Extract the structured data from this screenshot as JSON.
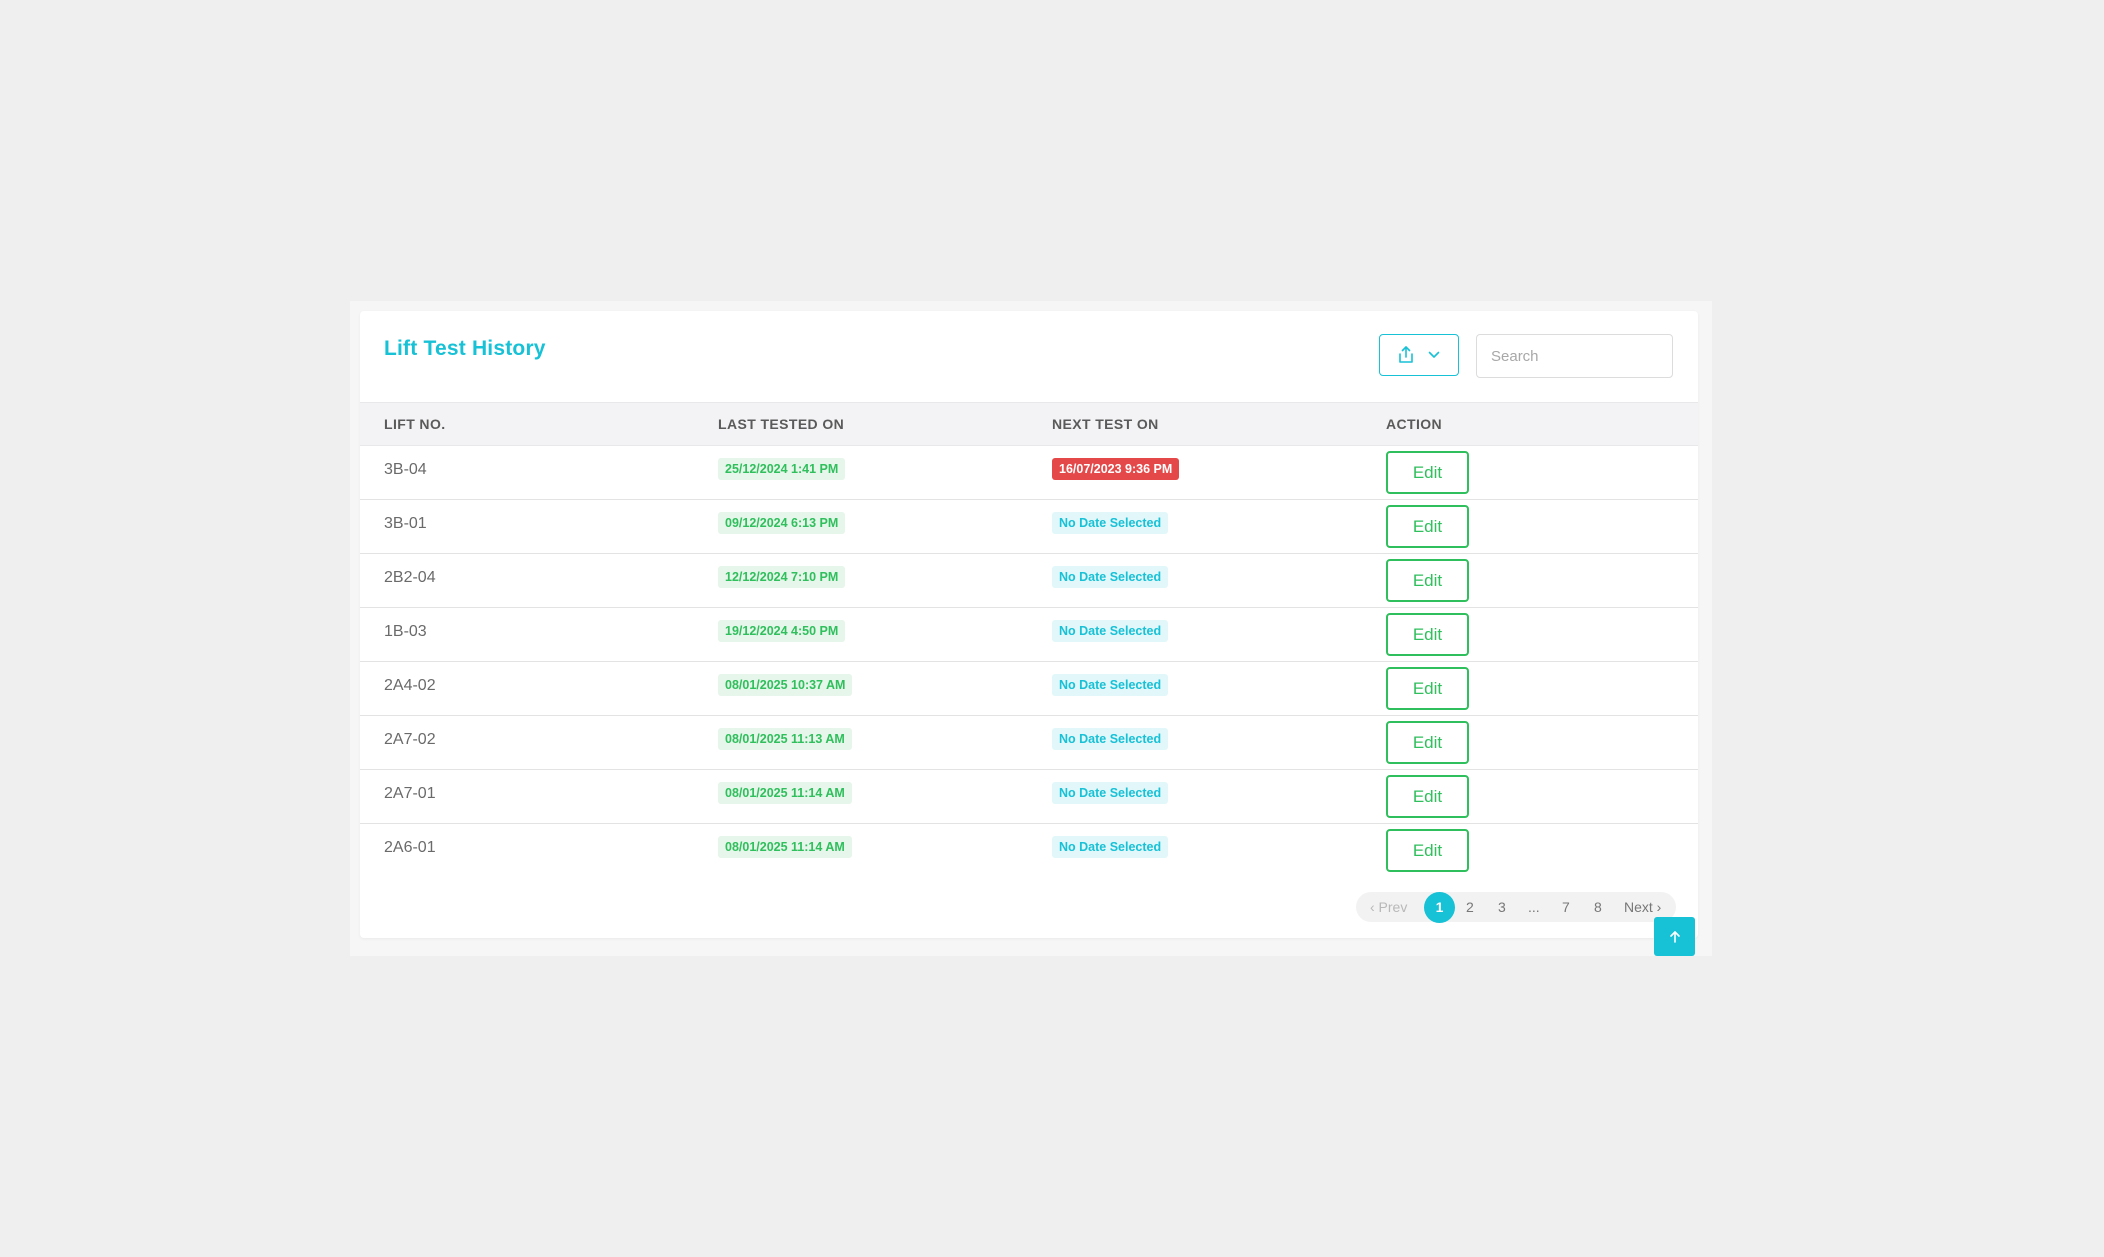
{
  "card": {
    "title": "Lift Test History"
  },
  "toolbar": {
    "export_icon": "share-export-icon",
    "chevron_icon": "chevron-down-icon",
    "search_placeholder": "Search",
    "accent_color": "#17c1d6"
  },
  "table": {
    "headers": [
      "LIFT NO.",
      "LAST TESTED ON",
      "NEXT TEST ON",
      "ACTION"
    ],
    "rows": [
      {
        "lift": "3B-04",
        "last": "25/12/2024 1:41 PM",
        "next": "16/07/2023 9:36 PM",
        "next_status": "overdue",
        "action": "Edit"
      },
      {
        "lift": "3B-01",
        "last": "09/12/2024 6:13 PM",
        "next": "No Date Selected",
        "next_status": "none",
        "action": "Edit"
      },
      {
        "lift": "2B2-04",
        "last": "12/12/2024 7:10 PM",
        "next": "No Date Selected",
        "next_status": "none",
        "action": "Edit"
      },
      {
        "lift": "1B-03",
        "last": "19/12/2024 4:50 PM",
        "next": "No Date Selected",
        "next_status": "none",
        "action": "Edit"
      },
      {
        "lift": "2A4-02",
        "last": "08/01/2025 10:37 AM",
        "next": "No Date Selected",
        "next_status": "none",
        "action": "Edit"
      },
      {
        "lift": "2A7-02",
        "last": "08/01/2025 11:13 AM",
        "next": "No Date Selected",
        "next_status": "none",
        "action": "Edit"
      },
      {
        "lift": "2A7-01",
        "last": "08/01/2025 11:14 AM",
        "next": "No Date Selected",
        "next_status": "none",
        "action": "Edit"
      },
      {
        "lift": "2A6-01",
        "last": "08/01/2025 11:14 AM",
        "next": "No Date Selected",
        "next_status": "none",
        "action": "Edit"
      }
    ]
  },
  "pagination": {
    "prev": "‹ Prev",
    "pages": [
      "1",
      "2",
      "3",
      "...",
      "7",
      "8"
    ],
    "current": "1",
    "next": "Next ›"
  },
  "scroll_top_icon": "arrow-up-icon",
  "colors": {
    "green": "#2fbf5c",
    "red": "#e54848",
    "cyan": "#17c1d6"
  }
}
